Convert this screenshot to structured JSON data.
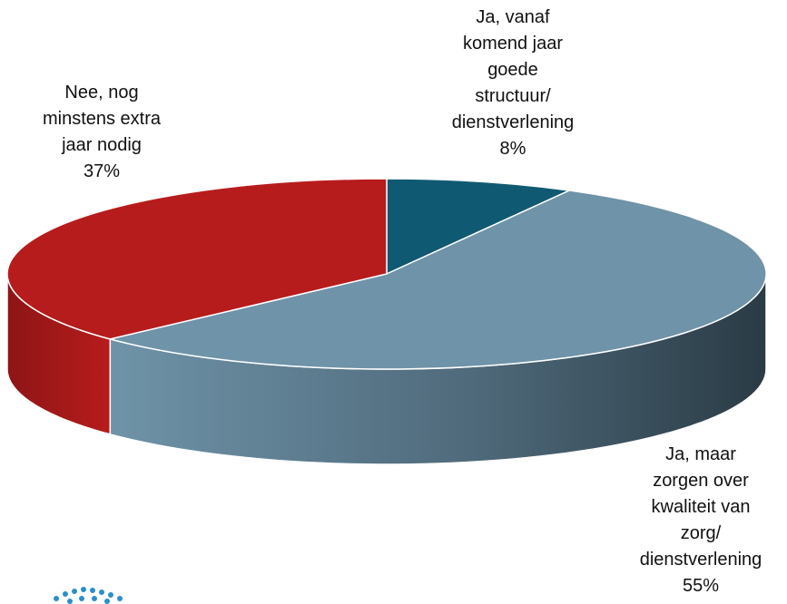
{
  "chart_data": {
    "type": "pie3d",
    "categories": [
      "Ja, vanaf\nkomend jaar\ngoede\nstructuur/\ndienstverlening",
      "Ja, maar\nzorgen over\nkwaliteit van\nzorg/\ndienstverlening",
      "Nee, nog\nminstens extra\njaar nodig"
    ],
    "values": [
      8,
      55,
      37
    ],
    "value_labels": [
      "8%",
      "55%",
      "37%"
    ],
    "colors": [
      "#0f5a72",
      "#6f93a8",
      "#b71c1c"
    ]
  }
}
